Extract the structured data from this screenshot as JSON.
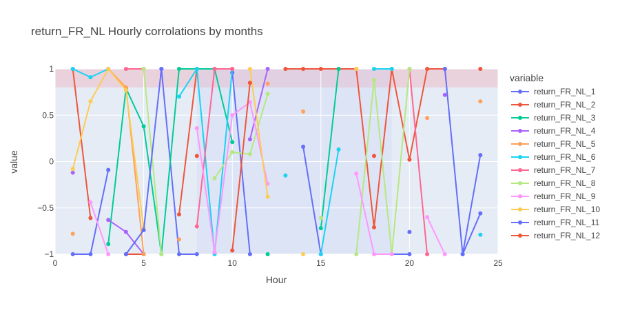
{
  "chart_data": {
    "type": "line",
    "title": "return_FR_NL Hourly corrolations by months",
    "xlabel": "Hour",
    "ylabel": "value",
    "xlim": [
      0,
      25
    ],
    "ylim": [
      -1,
      1
    ],
    "x_ticks": [
      0,
      5,
      10,
      15,
      20,
      25
    ],
    "y_ticks": [
      -1,
      -0.5,
      0,
      0.5,
      1
    ],
    "x_tick_labels": [
      "0",
      "5",
      "10",
      "15",
      "20",
      "25"
    ],
    "y_tick_labels": [
      "−1",
      "−0.5",
      "0",
      "0.5",
      "1"
    ],
    "grid": true,
    "legend_title": "variable",
    "legend_position": "right",
    "plot_background": "#e5ecf6",
    "shaded_regions": [
      {
        "axis": "y",
        "from": 0.8,
        "to": 1.0,
        "color": "#f4a3b0",
        "opacity": 0.35
      },
      {
        "axis": "x",
        "from": 8,
        "to": 19,
        "color": "#c8cdf5",
        "opacity": 0.25
      }
    ],
    "series": [
      {
        "name": "return_FR_NL_1",
        "color": "#636efa",
        "points": [
          [
            1,
            -1
          ],
          [
            2,
            -1
          ],
          [
            3,
            -0.09
          ],
          [
            4,
            null
          ],
          [
            5,
            null
          ],
          [
            6,
            1
          ],
          [
            7,
            -1
          ],
          [
            8,
            -1
          ],
          [
            9,
            null
          ],
          [
            10,
            0.96
          ],
          [
            11,
            -1
          ],
          [
            12,
            null
          ],
          [
            13,
            null
          ],
          [
            14,
            0.16
          ],
          [
            15,
            -1
          ],
          [
            16,
            null
          ],
          [
            17,
            null
          ],
          [
            18,
            null
          ],
          [
            19,
            -1
          ],
          [
            20,
            -1
          ],
          [
            21,
            null
          ],
          [
            22,
            null
          ],
          [
            23,
            -1
          ],
          [
            24,
            0.07
          ]
        ]
      },
      {
        "name": "return_FR_NL_2",
        "color": "#ef553b",
        "points": [
          [
            1,
            1
          ],
          [
            2,
            -0.61
          ],
          [
            3,
            null
          ],
          [
            4,
            -1
          ],
          [
            5,
            -1
          ],
          [
            6,
            null
          ],
          [
            7,
            -0.57
          ],
          [
            8,
            1
          ],
          [
            9,
            1
          ],
          [
            10,
            1
          ],
          [
            11,
            null
          ],
          [
            12,
            null
          ],
          [
            13,
            1
          ],
          [
            14,
            1
          ],
          [
            15,
            1
          ],
          [
            16,
            1
          ],
          [
            17,
            1
          ],
          [
            18,
            -0.71
          ],
          [
            19,
            1
          ],
          [
            20,
            0.02
          ],
          [
            21,
            1
          ],
          [
            22,
            1
          ],
          [
            23,
            null
          ],
          [
            24,
            1
          ]
        ]
      },
      {
        "name": "return_FR_NL_3",
        "color": "#00cc96",
        "points": [
          [
            1,
            null
          ],
          [
            2,
            null
          ],
          [
            3,
            -0.89
          ],
          [
            4,
            0.79
          ],
          [
            5,
            0.38
          ],
          [
            6,
            -1
          ],
          [
            7,
            1
          ],
          [
            8,
            1
          ],
          [
            9,
            1
          ],
          [
            10,
            0.21
          ],
          [
            11,
            null
          ],
          [
            12,
            -1
          ],
          [
            13,
            null
          ],
          [
            14,
            null
          ],
          [
            15,
            -0.72
          ],
          [
            16,
            1
          ],
          [
            17,
            null
          ],
          [
            18,
            null
          ],
          [
            19,
            null
          ],
          [
            20,
            null
          ],
          [
            21,
            null
          ],
          [
            22,
            null
          ],
          [
            23,
            null
          ],
          [
            24,
            null
          ]
        ]
      },
      {
        "name": "return_FR_NL_4",
        "color": "#ab63fa",
        "points": [
          [
            1,
            -0.12
          ],
          [
            2,
            null
          ],
          [
            3,
            -0.63
          ],
          [
            4,
            -0.76
          ],
          [
            5,
            -1
          ],
          [
            6,
            null
          ],
          [
            7,
            null
          ],
          [
            8,
            null
          ],
          [
            9,
            null
          ],
          [
            10,
            null
          ],
          [
            11,
            0.24
          ],
          [
            12,
            1
          ],
          [
            13,
            null
          ],
          [
            14,
            null
          ],
          [
            15,
            null
          ],
          [
            16,
            null
          ],
          [
            17,
            null
          ],
          [
            18,
            null
          ],
          [
            19,
            null
          ],
          [
            20,
            null
          ],
          [
            21,
            null
          ],
          [
            22,
            0.72
          ],
          [
            23,
            null
          ],
          [
            24,
            null
          ]
        ]
      },
      {
        "name": "return_FR_NL_5",
        "color": "#ffa15a",
        "points": [
          [
            1,
            -0.78
          ],
          [
            2,
            null
          ],
          [
            3,
            1
          ],
          [
            4,
            0.8
          ],
          [
            5,
            -1
          ],
          [
            6,
            null
          ],
          [
            7,
            -0.84
          ],
          [
            8,
            null
          ],
          [
            9,
            null
          ],
          [
            10,
            null
          ],
          [
            11,
            null
          ],
          [
            12,
            0.84
          ],
          [
            13,
            null
          ],
          [
            14,
            0.54
          ],
          [
            15,
            null
          ],
          [
            16,
            null
          ],
          [
            17,
            null
          ],
          [
            18,
            null
          ],
          [
            19,
            null
          ],
          [
            20,
            null
          ],
          [
            21,
            0.47
          ],
          [
            22,
            null
          ],
          [
            23,
            null
          ],
          [
            24,
            0.65
          ]
        ]
      },
      {
        "name": "return_FR_NL_6",
        "color": "#19d3f3",
        "points": [
          [
            1,
            1
          ],
          [
            2,
            0.91
          ],
          [
            3,
            1
          ],
          [
            4,
            null
          ],
          [
            5,
            null
          ],
          [
            6,
            null
          ],
          [
            7,
            0.7
          ],
          [
            8,
            1
          ],
          [
            9,
            -1
          ],
          [
            10,
            1
          ],
          [
            11,
            null
          ],
          [
            12,
            null
          ],
          [
            13,
            -0.15
          ],
          [
            14,
            null
          ],
          [
            15,
            -1
          ],
          [
            16,
            0.13
          ],
          [
            17,
            null
          ],
          [
            18,
            1
          ],
          [
            19,
            1
          ],
          [
            20,
            null
          ],
          [
            21,
            null
          ],
          [
            22,
            null
          ],
          [
            23,
            null
          ],
          [
            24,
            -0.79
          ]
        ]
      },
      {
        "name": "return_FR_NL_7",
        "color": "#ff6692",
        "points": [
          [
            1,
            null
          ],
          [
            2,
            null
          ],
          [
            3,
            null
          ],
          [
            4,
            1
          ],
          [
            5,
            1
          ],
          [
            6,
            null
          ],
          [
            7,
            null
          ],
          [
            8,
            -0.7
          ],
          [
            9,
            1
          ],
          [
            10,
            1
          ],
          [
            11,
            null
          ],
          [
            12,
            null
          ],
          [
            13,
            null
          ],
          [
            14,
            null
          ],
          [
            15,
            null
          ],
          [
            16,
            null
          ],
          [
            17,
            null
          ],
          [
            18,
            null
          ],
          [
            19,
            null
          ],
          [
            20,
            1
          ],
          [
            21,
            -1
          ],
          [
            22,
            null
          ],
          [
            23,
            null
          ],
          [
            24,
            null
          ]
        ]
      },
      {
        "name": "return_FR_NL_8",
        "color": "#b6e880",
        "points": [
          [
            1,
            null
          ],
          [
            2,
            null
          ],
          [
            3,
            null
          ],
          [
            4,
            null
          ],
          [
            5,
            1
          ],
          [
            6,
            -1
          ],
          [
            7,
            null
          ],
          [
            8,
            null
          ],
          [
            9,
            -0.18
          ],
          [
            10,
            0.1
          ],
          [
            11,
            0.08
          ],
          [
            12,
            0.73
          ],
          [
            13,
            null
          ],
          [
            14,
            null
          ],
          [
            15,
            -0.61
          ],
          [
            16,
            null
          ],
          [
            17,
            -1
          ],
          [
            18,
            0.88
          ],
          [
            19,
            -1
          ],
          [
            20,
            1
          ],
          [
            21,
            null
          ],
          [
            22,
            null
          ],
          [
            23,
            null
          ],
          [
            24,
            null
          ]
        ]
      },
      {
        "name": "return_FR_NL_9",
        "color": "#ff97ff",
        "points": [
          [
            1,
            null
          ],
          [
            2,
            -0.44
          ],
          [
            3,
            -1
          ],
          [
            4,
            null
          ],
          [
            5,
            null
          ],
          [
            6,
            null
          ],
          [
            7,
            null
          ],
          [
            8,
            0.36
          ],
          [
            9,
            -0.98
          ],
          [
            10,
            0.5
          ],
          [
            11,
            0.64
          ],
          [
            12,
            -0.24
          ],
          [
            13,
            null
          ],
          [
            14,
            null
          ],
          [
            15,
            null
          ],
          [
            16,
            null
          ],
          [
            17,
            -0.13
          ],
          [
            18,
            -1
          ],
          [
            19,
            -1
          ],
          [
            20,
            null
          ],
          [
            21,
            -0.6
          ],
          [
            22,
            -1
          ],
          [
            23,
            null
          ],
          [
            24,
            null
          ]
        ]
      },
      {
        "name": "return_FR_NL_10",
        "color": "#fecb52",
        "points": [
          [
            1,
            -0.08
          ],
          [
            2,
            0.65
          ],
          [
            3,
            1
          ],
          [
            4,
            0.77
          ],
          [
            5,
            -0.72
          ],
          [
            6,
            null
          ],
          [
            7,
            null
          ],
          [
            8,
            null
          ],
          [
            9,
            null
          ],
          [
            10,
            null
          ],
          [
            11,
            1
          ],
          [
            12,
            -0.38
          ],
          [
            13,
            null
          ],
          [
            14,
            -1
          ],
          [
            15,
            null
          ],
          [
            16,
            null
          ],
          [
            17,
            1
          ],
          [
            18,
            null
          ],
          [
            19,
            null
          ],
          [
            20,
            null
          ],
          [
            21,
            null
          ],
          [
            22,
            null
          ],
          [
            23,
            null
          ],
          [
            24,
            null
          ]
        ]
      },
      {
        "name": "return_FR_NL_11",
        "color": "#636efa",
        "points": [
          [
            1,
            null
          ],
          [
            2,
            null
          ],
          [
            3,
            null
          ],
          [
            4,
            -1
          ],
          [
            5,
            -0.74
          ],
          [
            6,
            1
          ],
          [
            7,
            null
          ],
          [
            8,
            null
          ],
          [
            9,
            null
          ],
          [
            10,
            null
          ],
          [
            11,
            null
          ],
          [
            12,
            null
          ],
          [
            13,
            null
          ],
          [
            14,
            null
          ],
          [
            15,
            null
          ],
          [
            16,
            null
          ],
          [
            17,
            null
          ],
          [
            18,
            null
          ],
          [
            19,
            null
          ],
          [
            20,
            -0.76
          ],
          [
            21,
            null
          ],
          [
            22,
            1
          ],
          [
            23,
            -1
          ],
          [
            24,
            -0.56
          ]
        ]
      },
      {
        "name": "return_FR_NL_12",
        "color": "#ef553b",
        "points": [
          [
            1,
            null
          ],
          [
            2,
            null
          ],
          [
            3,
            null
          ],
          [
            4,
            null
          ],
          [
            5,
            null
          ],
          [
            6,
            null
          ],
          [
            7,
            null
          ],
          [
            8,
            0.06
          ],
          [
            9,
            null
          ],
          [
            10,
            -0.96
          ],
          [
            11,
            0.85
          ],
          [
            12,
            null
          ],
          [
            13,
            null
          ],
          [
            14,
            null
          ],
          [
            15,
            null
          ],
          [
            16,
            null
          ],
          [
            17,
            null
          ],
          [
            18,
            0.06
          ],
          [
            19,
            null
          ],
          [
            20,
            null
          ],
          [
            21,
            null
          ],
          [
            22,
            null
          ],
          [
            23,
            null
          ],
          [
            24,
            null
          ]
        ]
      }
    ]
  }
}
